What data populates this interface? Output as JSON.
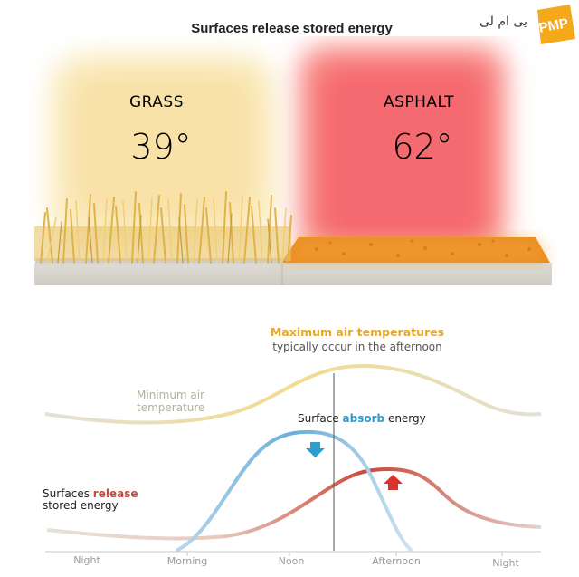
{
  "title": "Surfaces release stored energy",
  "logo": {
    "text": "یی ام لی",
    "badge": "PMP"
  },
  "surfaces": [
    {
      "label": "GRASS",
      "temperature": "39°"
    },
    {
      "label": "ASPHALT",
      "temperature": "62°"
    }
  ],
  "annotations": {
    "max_heading": "Maximum air temperatures",
    "max_sub": "typically occur in the afternoon",
    "min_line1": "Minimum air",
    "min_line2": "temperature",
    "absorb_pre": "Surface ",
    "absorb_word": "absorb",
    "absorb_post": " energy",
    "release_pre": "Surfaces ",
    "release_word": "release",
    "release_line2": "stored energy"
  },
  "x_axis_labels": [
    "Night",
    "Morning",
    "Noon",
    "Afternoon",
    "Night"
  ],
  "colors": {
    "air_temperature": "#f2dc8c",
    "min_line": "#e0ddd3",
    "absorb": "#6aaed8",
    "release": "#c9483a",
    "asphalt_heat": "#f4606a",
    "grass_heat": "#f7dc95"
  },
  "chart_data": {
    "type": "line",
    "x": [
      "Night",
      "Morning",
      "Noon",
      "Afternoon",
      "Night"
    ],
    "series": [
      {
        "values": [
          0.3,
          0.28,
          0.65,
          0.9,
          0.4
        ]
      },
      {
        "values": [
          0.02,
          0.05,
          0.85,
          0.05,
          0.0
        ]
      },
      {
        "values": [
          0.18,
          0.05,
          0.25,
          0.55,
          0.12
        ]
      }
    ]
  }
}
